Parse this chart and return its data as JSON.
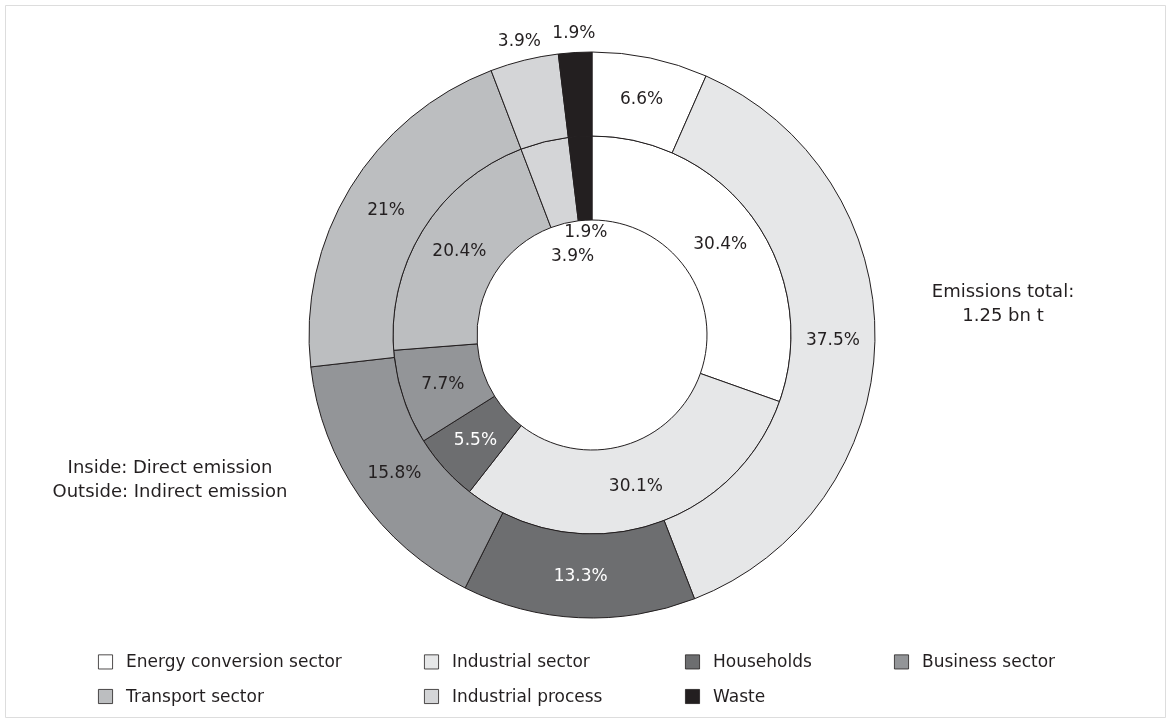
{
  "chart_data": {
    "type": "donut",
    "categories": [
      "Energy conversion sector",
      "Industrial sector",
      "Households",
      "Business sector",
      "Transport sector",
      "Industrial process",
      "Waste"
    ],
    "colors": [
      "#ffffff",
      "#e6e7e8",
      "#6d6e70",
      "#939598",
      "#bcbec0",
      "#d4d5d7",
      "#231f20"
    ],
    "series": [
      {
        "values": [
          30.4,
          30.1,
          5.5,
          7.7,
          20.4,
          3.9,
          1.9
        ],
        "value_labels": [
          "30.4%",
          "30.1%",
          "5.5%",
          "7.7%",
          "20.4%",
          "3.9%",
          "1.9%"
        ]
      },
      {
        "values": [
          6.6,
          37.5,
          13.3,
          15.8,
          21,
          3.9,
          1.9
        ],
        "value_labels": [
          "6.6%",
          "37.5%",
          "13.3%",
          "15.8%",
          "21%",
          "3.9%",
          "1.9%"
        ]
      }
    ],
    "legend": "bottom",
    "annotations": [
      "Emissions total:\n1.25 bn t",
      "Inside: Direct emission\nOutside: Indirect emission"
    ]
  }
}
